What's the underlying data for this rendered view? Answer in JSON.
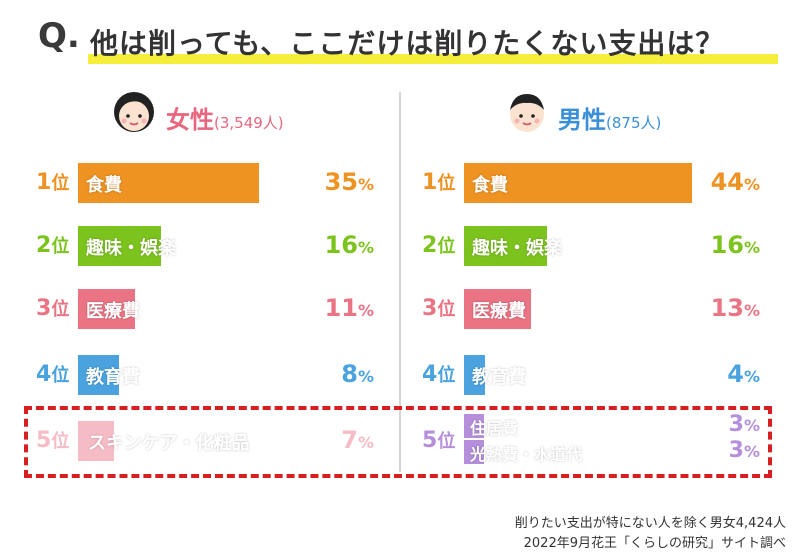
{
  "title": {
    "q": "Q.",
    "text": "他は削っても、ここだけは削りたくない支出は？"
  },
  "colors": {
    "rank1": "#ee9222",
    "rank2": "#7cc31e",
    "rank3": "#ea7484",
    "rank4": "#4aa3df",
    "rank5_female": "#f6bcc6",
    "rank5_male": "#b58fdb",
    "female_label": "#e8677e",
    "male_label": "#3a8fd8",
    "highlight": "#f5ee3a",
    "dash": "#d81f1f"
  },
  "chart_data": [
    {
      "type": "bar",
      "group": "女性",
      "count_label": "(3,549人)",
      "rank_suffix": "位",
      "pct_suffix": "%",
      "categories": [
        "食費",
        "趣味・娯楽",
        "医療費",
        "教育費",
        "スキンケア・化粧品"
      ],
      "ranks": [
        "1",
        "2",
        "3",
        "4",
        "5"
      ],
      "values": [
        35,
        16,
        11,
        8,
        7
      ]
    },
    {
      "type": "bar",
      "group": "男性",
      "count_label": "(875人)",
      "rank_suffix": "位",
      "pct_suffix": "%",
      "categories": [
        "食費",
        "趣味・娯楽",
        "医療費",
        "教育費",
        "住居費",
        "光熱費・水道代"
      ],
      "ranks": [
        "1",
        "2",
        "3",
        "4",
        "5"
      ],
      "values": [
        44,
        16,
        13,
        4,
        3,
        3
      ]
    }
  ],
  "footnotes": [
    "削りたい支出が特にない人を除く男女4,424人",
    "2022年9月花王「くらしの研究」サイト調べ"
  ]
}
